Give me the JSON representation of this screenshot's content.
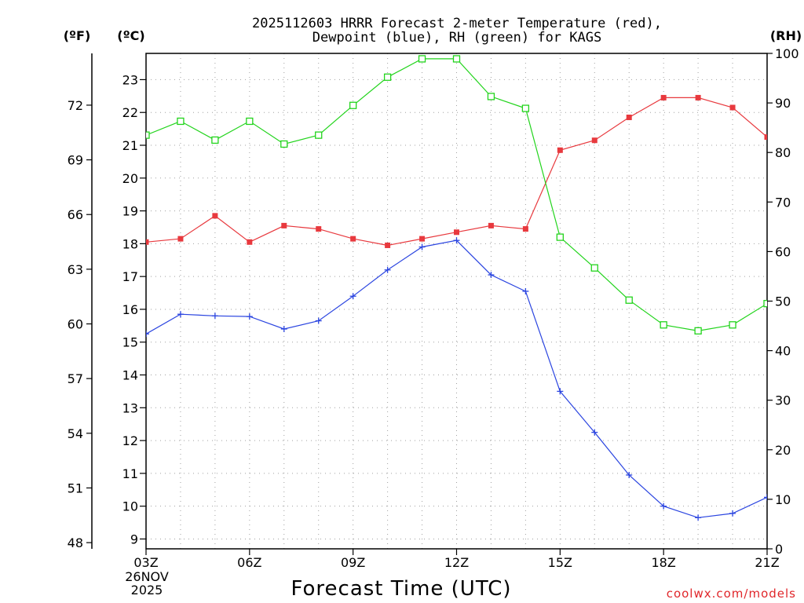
{
  "colors": {
    "temperature": "#e8393e",
    "dewpoint": "#2b45e0",
    "rh": "#22d41c",
    "grid": "#a0a0a0",
    "credit": "#e0262a"
  },
  "chart_data": {
    "type": "line",
    "title": "2025112603 HRRR Forecast 2-meter Temperature (red),",
    "subtitle": "Dewpoint (blue), RH (green) for KAGS",
    "xlabel": "Forecast Time (UTC)",
    "x": [
      3,
      4,
      5,
      6,
      7,
      8,
      9,
      10,
      11,
      12,
      13,
      14,
      15,
      16,
      17,
      18,
      19,
      20,
      21
    ],
    "xlim": [
      3,
      21
    ],
    "x_ticks": [
      {
        "x": 3,
        "label": "03Z"
      },
      {
        "x": 6,
        "label": "06Z"
      },
      {
        "x": 9,
        "label": "09Z"
      },
      {
        "x": 12,
        "label": "12Z"
      },
      {
        "x": 15,
        "label": "15Z"
      },
      {
        "x": 18,
        "label": "18Z"
      },
      {
        "x": 21,
        "label": "21Z"
      }
    ],
    "date_line1": "26NOV",
    "date_line2": "2025",
    "axes": {
      "fahrenheit": {
        "unit_label": "(ºF)",
        "ticks": [
          48,
          51,
          54,
          57,
          60,
          63,
          66,
          69,
          72
        ]
      },
      "celsius": {
        "unit_label": "(ºC)",
        "ylim": [
          8.7,
          23.8
        ],
        "ticks": [
          9,
          10,
          11,
          12,
          13,
          14,
          15,
          16,
          17,
          18,
          19,
          20,
          21,
          22,
          23
        ]
      },
      "rh": {
        "unit_label": "(RH)",
        "ylim": [
          0,
          100
        ],
        "ticks": [
          0,
          10,
          20,
          30,
          40,
          50,
          60,
          70,
          80,
          90,
          100
        ]
      }
    },
    "grid": true,
    "series": [
      {
        "key": "temperature",
        "axis": "celsius",
        "marker": "filled-square",
        "values": [
          18.05,
          18.15,
          18.85,
          18.05,
          18.55,
          18.45,
          18.15,
          17.95,
          18.15,
          18.35,
          18.55,
          18.45,
          20.85,
          21.15,
          21.85,
          22.45,
          22.45,
          22.15,
          21.25
        ]
      },
      {
        "key": "dewpoint",
        "axis": "celsius",
        "marker": "plus",
        "values": [
          15.25,
          15.85,
          15.8,
          15.78,
          15.4,
          15.65,
          16.4,
          17.2,
          17.9,
          18.1,
          17.05,
          16.55,
          13.5,
          12.25,
          10.95,
          10.0,
          9.65,
          9.78,
          10.27
        ]
      },
      {
        "key": "rh",
        "axis": "rh",
        "marker": "open-square",
        "values": [
          83.5,
          86.3,
          82.5,
          86.3,
          81.7,
          83.5,
          89.5,
          95.2,
          98.9,
          98.9,
          91.3,
          88.9,
          62.9,
          56.7,
          50.2,
          45.2,
          44.0,
          45.2,
          49.5
        ]
      }
    ]
  },
  "credit": "coolwx.com/models"
}
